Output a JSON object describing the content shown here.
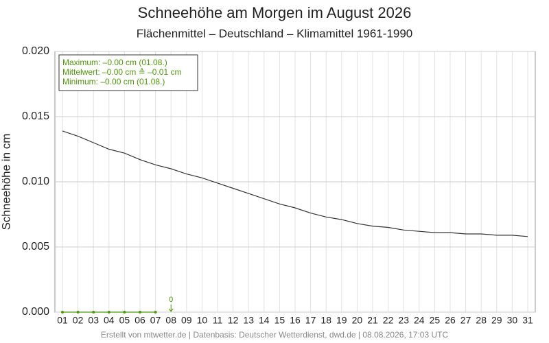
{
  "chart_data": {
    "type": "line",
    "title": "Schneehöhe am Morgen im August 2026",
    "subtitle": "Flächenmittel – Deutschland – Klimamittel 1961-1990",
    "y_label": "Schneehöhe in cm",
    "footer": "Erstellt von mtwetter.de | Datenbasis: Deutscher Wetterdienst, dwd.de | 08.08.2026, 17:03 UTC",
    "stats_box": [
      "Maximum: –0.00 cm  (01.08.)",
      "Mittelwert: –0.00 cm ≙ –0.01 cm",
      "Minimum:  –0.00 cm  (01.08.)"
    ],
    "categories": [
      "01",
      "02",
      "03",
      "04",
      "05",
      "06",
      "07",
      "08",
      "09",
      "10",
      "11",
      "12",
      "13",
      "14",
      "15",
      "16",
      "17",
      "18",
      "19",
      "20",
      "21",
      "22",
      "23",
      "24",
      "25",
      "26",
      "27",
      "28",
      "29",
      "30",
      "31"
    ],
    "series": [
      {
        "color": "#333333",
        "style": "line",
        "values": [
          0.0139,
          0.0135,
          0.013,
          0.0125,
          0.0122,
          0.0117,
          0.0113,
          0.011,
          0.0106,
          0.0103,
          0.0099,
          0.0095,
          0.0091,
          0.0087,
          0.0083,
          0.008,
          0.0076,
          0.0073,
          0.0071,
          0.0068,
          0.0066,
          0.0065,
          0.0063,
          0.0062,
          0.0061,
          0.0061,
          0.006,
          0.006,
          0.0059,
          0.0059,
          0.0058
        ]
      },
      {
        "color": "#4e9a06",
        "style": "points",
        "values": [
          0,
          0,
          0,
          0,
          0,
          0,
          0,
          null,
          null,
          null,
          null,
          null,
          null,
          null,
          null,
          null,
          null,
          null,
          null,
          null,
          null,
          null,
          null,
          null,
          null,
          null,
          null,
          null,
          null,
          null,
          null
        ]
      }
    ],
    "annotations": [
      {
        "text": "0",
        "x": "08"
      }
    ],
    "ylim": [
      0,
      0.02
    ],
    "yticks": [
      {
        "value": 0,
        "label": "0.000"
      },
      {
        "value": 0.005,
        "label": "0.005"
      },
      {
        "value": 0.01,
        "label": "0.010"
      },
      {
        "value": 0.015,
        "label": "0.015"
      },
      {
        "value": 0.02,
        "label": "0.020"
      }
    ],
    "grid": true
  }
}
